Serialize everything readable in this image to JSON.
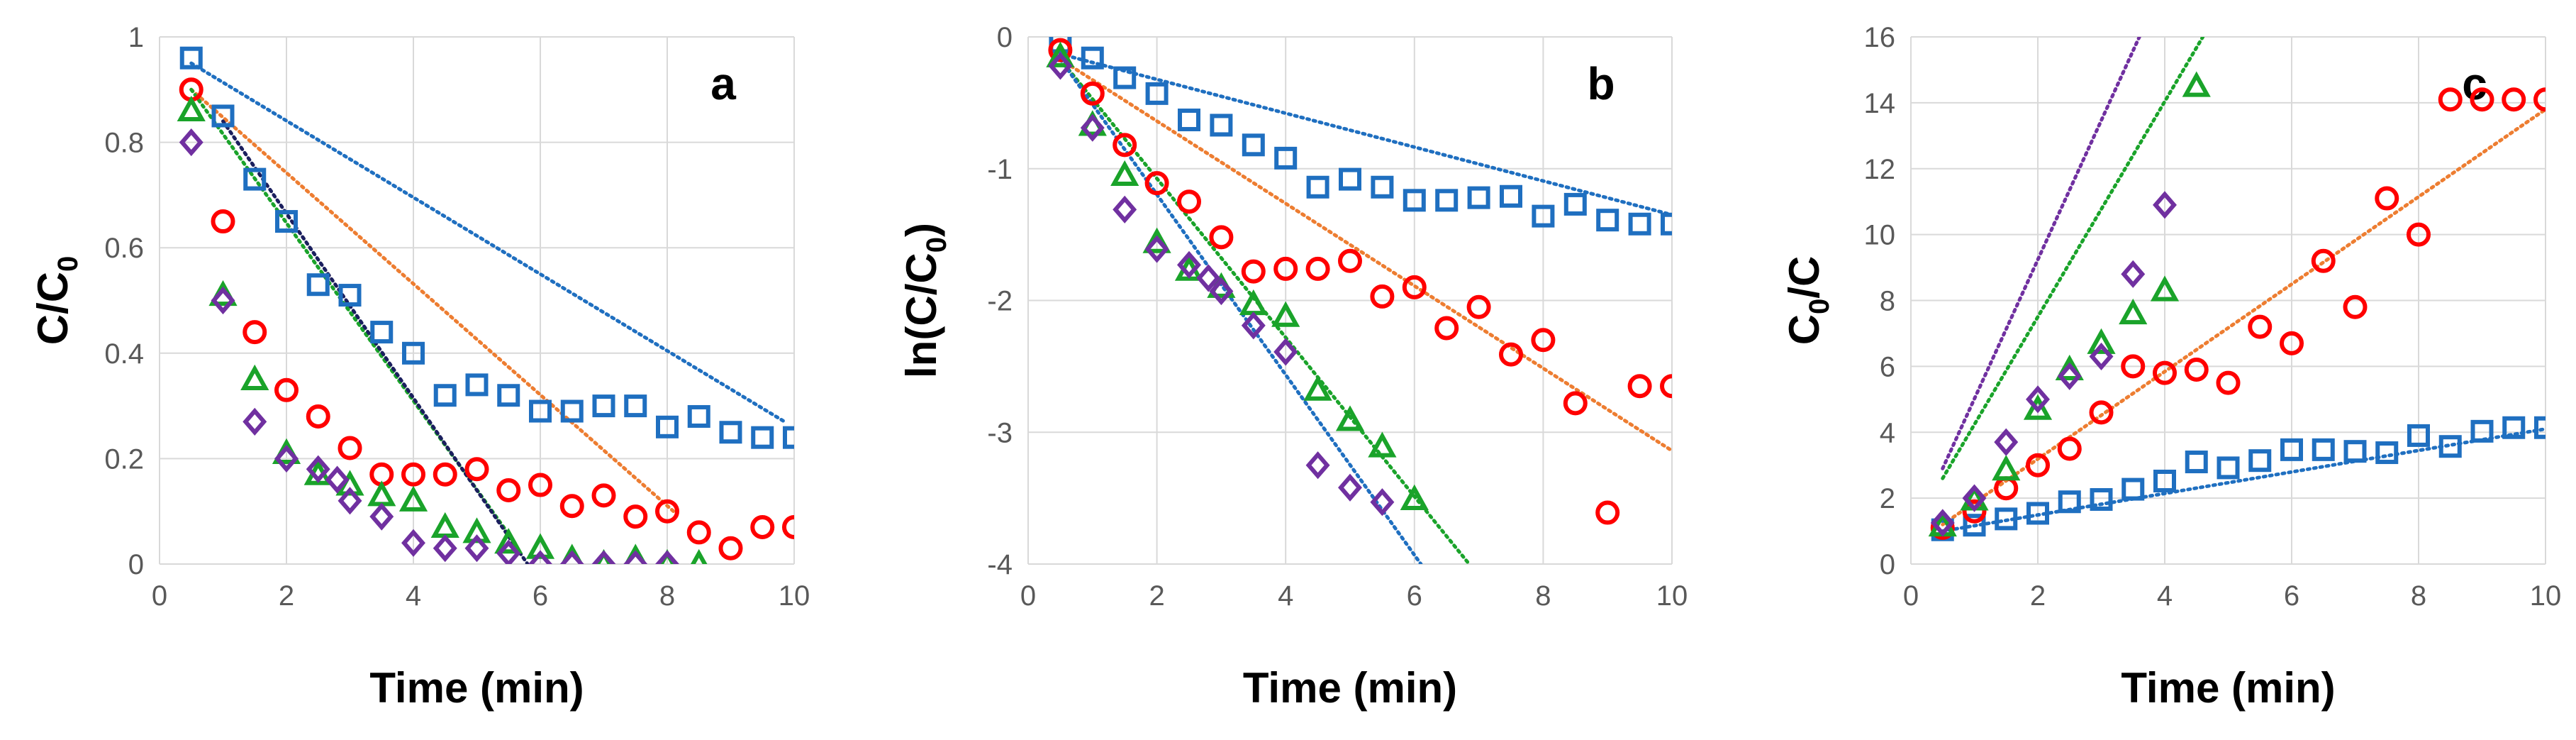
{
  "colors": {
    "blue": "#1f6fc0",
    "red": "#ff0000",
    "green": "#1aa32a",
    "purple": "#7030a0",
    "orange": "#ed7d31",
    "dark_navy": "#1b1f5e",
    "grid": "#d9d9d9"
  },
  "chart_data": [
    {
      "type": "scatter",
      "panel_label": "a",
      "xlabel": "Time (min)",
      "ylabel_main": "C/C",
      "ylabel_sub": "0",
      "xlim": [
        0,
        10
      ],
      "ylim": [
        0,
        1
      ],
      "xticks": [
        0,
        2,
        4,
        6,
        8,
        10
      ],
      "yticks": [
        0,
        0.2,
        0.4,
        0.6,
        0.8,
        1
      ],
      "ytick_labels": [
        "0",
        "0.2",
        "0.4",
        "0.6",
        "0.8",
        "1"
      ],
      "series": [
        {
          "marker": "square",
          "color": "blue",
          "x": [
            0.5,
            1,
            1.5,
            2,
            2.5,
            3,
            3.5,
            4,
            4.5,
            5,
            5.5,
            6,
            6.5,
            7,
            7.5,
            8,
            8.5,
            9,
            9.5,
            10
          ],
          "y": [
            0.96,
            0.85,
            0.73,
            0.65,
            0.53,
            0.51,
            0.44,
            0.4,
            0.32,
            0.34,
            0.32,
            0.29,
            0.29,
            0.3,
            0.3,
            0.26,
            0.28,
            0.25,
            0.24,
            0.24
          ]
        },
        {
          "marker": "circle",
          "color": "red",
          "x": [
            0.5,
            1,
            1.5,
            2,
            2.5,
            3,
            3.5,
            4,
            4.5,
            5,
            5.5,
            6,
            6.5,
            7,
            7.5,
            8,
            8.5,
            9,
            9.5,
            10
          ],
          "y": [
            0.9,
            0.65,
            0.44,
            0.33,
            0.28,
            0.22,
            0.17,
            0.17,
            0.17,
            0.18,
            0.14,
            0.15,
            0.11,
            0.13,
            0.09,
            0.1,
            0.06,
            0.03,
            0.07,
            0.07
          ]
        },
        {
          "marker": "triangle",
          "color": "green",
          "x": [
            0.5,
            1,
            1.5,
            2,
            2.5,
            3,
            3.5,
            4,
            4.5,
            5,
            5.5,
            6,
            6.5,
            7,
            7.5,
            8,
            8.5
          ],
          "y": [
            0.86,
            0.51,
            0.35,
            0.21,
            0.17,
            0.15,
            0.13,
            0.12,
            0.07,
            0.06,
            0.04,
            0.03,
            0.01,
            0.0,
            0.01,
            0.0,
            0.0
          ]
        },
        {
          "marker": "diamond",
          "color": "purple",
          "x": [
            0.5,
            1,
            1.5,
            2,
            2.5,
            2.8,
            3,
            3.5,
            4,
            4.5,
            5,
            5.5,
            6,
            6.5,
            7,
            7.5,
            8
          ],
          "y": [
            0.8,
            0.5,
            0.27,
            0.2,
            0.18,
            0.16,
            0.12,
            0.09,
            0.04,
            0.03,
            0.03,
            0.02,
            0.0,
            0.0,
            0.0,
            0.0,
            0.0
          ]
        }
      ],
      "trendlines": [
        {
          "color": "blue",
          "x": [
            0.5,
            9.85
          ],
          "y": [
            0.95,
            0.27
          ]
        },
        {
          "color": "orange",
          "x": [
            0.5,
            8.1
          ],
          "y": [
            0.9,
            0.1
          ]
        },
        {
          "color": "green",
          "x": [
            0.5,
            5.6
          ],
          "y": [
            0.9,
            0.04
          ]
        },
        {
          "color": "dark_navy",
          "x": [
            1.0,
            5.8
          ],
          "y": [
            0.84,
            0.0
          ]
        }
      ]
    },
    {
      "type": "scatter",
      "panel_label": "b",
      "xlabel": "Time (min)",
      "ylabel_main": "ln(C/C",
      "ylabel_sub": "0",
      "ylabel_end": ")",
      "xlim": [
        0,
        10
      ],
      "ylim": [
        -4,
        0
      ],
      "xticks": [
        0,
        2,
        4,
        6,
        8,
        10
      ],
      "yticks": [
        -4,
        -3,
        -2,
        -1,
        0
      ],
      "ytick_labels": [
        "-4",
        "-3",
        "-2",
        "-1",
        "0"
      ],
      "series": [
        {
          "marker": "square",
          "color": "blue",
          "x": [
            0.5,
            1,
            1.5,
            2,
            2.5,
            3,
            3.5,
            4,
            4.5,
            5,
            5.5,
            6,
            6.5,
            7,
            7.5,
            8,
            8.5,
            9,
            9.5,
            10
          ],
          "y": [
            -0.04,
            -0.16,
            -0.31,
            -0.43,
            -0.63,
            -0.67,
            -0.82,
            -0.92,
            -1.14,
            -1.08,
            -1.14,
            -1.24,
            -1.24,
            -1.22,
            -1.21,
            -1.36,
            -1.27,
            -1.39,
            -1.42,
            -1.42
          ]
        },
        {
          "marker": "circle",
          "color": "red",
          "x": [
            0.5,
            1,
            1.5,
            2,
            2.5,
            3,
            3.5,
            4,
            4.5,
            5,
            5.5,
            6,
            6.5,
            7,
            7.5,
            8,
            8.5,
            9,
            9.5,
            10
          ],
          "y": [
            -0.1,
            -0.43,
            -0.82,
            -1.11,
            -1.25,
            -1.52,
            -1.78,
            -1.76,
            -1.76,
            -1.7,
            -1.97,
            -1.9,
            -2.21,
            -2.05,
            -2.41,
            -2.3,
            -2.78,
            -3.61,
            -2.65,
            -2.65
          ]
        },
        {
          "marker": "triangle",
          "color": "green",
          "x": [
            0.5,
            1,
            1.5,
            2,
            2.5,
            3,
            3.5,
            4,
            4.5,
            5,
            5.5,
            6
          ],
          "y": [
            -0.15,
            -0.67,
            -1.05,
            -1.56,
            -1.77,
            -1.9,
            -2.03,
            -2.12,
            -2.68,
            -2.91,
            -3.11,
            -3.51
          ]
        },
        {
          "marker": "diamond",
          "color": "purple",
          "x": [
            0.5,
            1,
            1.5,
            2,
            2.5,
            2.8,
            3,
            3.5,
            4,
            4.5,
            5,
            5.5
          ],
          "y": [
            -0.22,
            -0.69,
            -1.31,
            -1.61,
            -1.73,
            -1.83,
            -1.93,
            -2.19,
            -2.39,
            -3.25,
            -3.42,
            -3.53
          ]
        }
      ],
      "trendlines": [
        {
          "color": "blue",
          "x": [
            0.5,
            10
          ],
          "y": [
            -0.13,
            -1.35
          ]
        },
        {
          "color": "orange",
          "x": [
            0.5,
            10
          ],
          "y": [
            -0.17,
            -3.14
          ]
        },
        {
          "color": "green",
          "x": [
            0.5,
            6.85
          ],
          "y": [
            -0.17,
            -4.0
          ]
        },
        {
          "color": "blue",
          "x": [
            0.5,
            6.1
          ],
          "y": [
            -0.17,
            -4.0
          ]
        }
      ]
    },
    {
      "type": "scatter",
      "panel_label": "c",
      "xlabel": "Time (min)",
      "ylabel_main": "C",
      "ylabel_sub": "0",
      "ylabel_end": "/C",
      "xlim": [
        0,
        10
      ],
      "ylim": [
        0,
        16
      ],
      "xticks": [
        0,
        2,
        4,
        6,
        8,
        10
      ],
      "yticks": [
        0,
        2,
        4,
        6,
        8,
        10,
        12,
        14,
        16
      ],
      "ytick_labels": [
        "0",
        "2",
        "4",
        "6",
        "8",
        "10",
        "12",
        "14",
        "16"
      ],
      "series": [
        {
          "marker": "square",
          "color": "blue",
          "x": [
            0.5,
            1,
            1.5,
            2,
            2.5,
            3,
            3.5,
            4,
            4.5,
            5,
            5.5,
            6,
            6.5,
            7,
            7.5,
            8,
            8.5,
            9,
            9.5,
            10
          ],
          "y": [
            1.04,
            1.18,
            1.37,
            1.54,
            1.89,
            1.96,
            2.27,
            2.52,
            3.1,
            2.92,
            3.14,
            3.47,
            3.47,
            3.42,
            3.38,
            3.9,
            3.57,
            4.03,
            4.14,
            4.14
          ]
        },
        {
          "marker": "circle",
          "color": "red",
          "x": [
            0.5,
            1,
            1.5,
            2,
            2.5,
            3,
            3.5,
            4,
            4.5,
            5,
            5.5,
            6,
            6.5,
            7,
            7.5,
            8,
            8.5,
            9,
            9.5,
            10
          ],
          "y": [
            1.1,
            1.6,
            2.3,
            3.0,
            3.5,
            4.6,
            6.0,
            5.8,
            5.9,
            5.5,
            7.2,
            6.7,
            9.2,
            7.8,
            11.1,
            10.0,
            14.1,
            14.1,
            14.1,
            14.1
          ]
        },
        {
          "marker": "triangle",
          "color": "green",
          "x": [
            0.5,
            1,
            1.5,
            2,
            2.5,
            3,
            3.5,
            4,
            4.5
          ],
          "y": [
            1.16,
            1.95,
            2.86,
            4.7,
            5.9,
            6.7,
            7.6,
            8.3,
            14.5
          ]
        },
        {
          "marker": "diamond",
          "color": "purple",
          "x": [
            0.5,
            1,
            1.5,
            2,
            2.5,
            3,
            3.5,
            4
          ],
          "y": [
            1.25,
            2.0,
            3.7,
            5.0,
            5.7,
            6.3,
            8.8,
            10.9
          ]
        }
      ],
      "trendlines": [
        {
          "color": "blue",
          "x": [
            0.5,
            10
          ],
          "y": [
            1.0,
            4.1
          ]
        },
        {
          "color": "orange",
          "x": [
            0.5,
            10
          ],
          "y": [
            1.2,
            13.8
          ]
        },
        {
          "color": "green",
          "x": [
            0.5,
            4.6
          ],
          "y": [
            2.6,
            16.0
          ]
        },
        {
          "color": "purple",
          "x": [
            0.5,
            3.6
          ],
          "y": [
            2.9,
            16.0
          ]
        }
      ]
    }
  ]
}
